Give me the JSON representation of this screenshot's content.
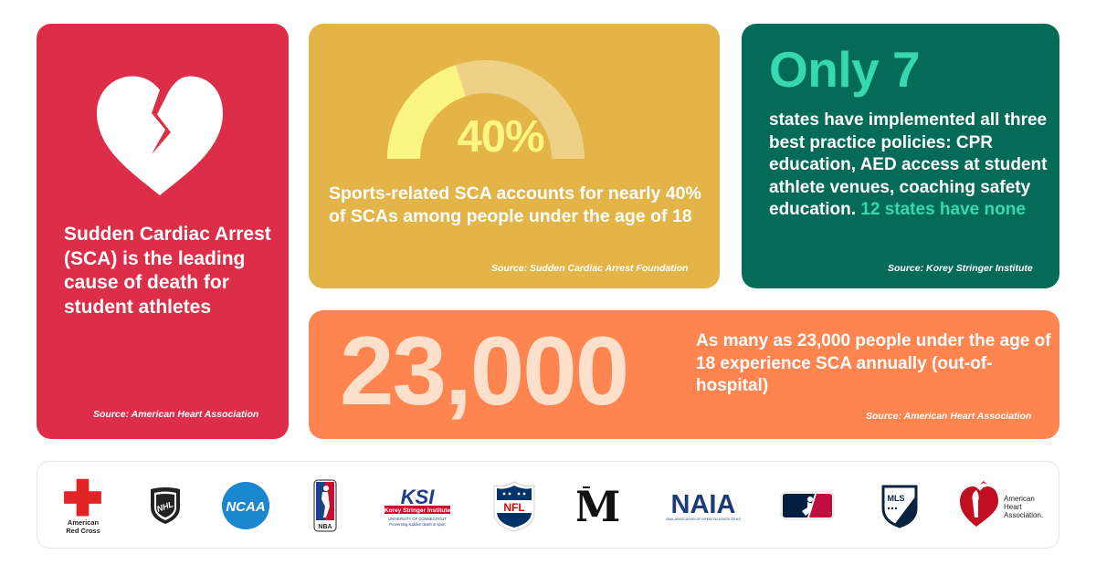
{
  "red_card": {
    "heading": "Sudden Cardiac Arrest (SCA) is the leading cause of death for student athletes",
    "source": "Source: American Heart Association",
    "icon": "broken-heart-icon"
  },
  "yellow_card": {
    "gauge_value": "40%",
    "gauge_fraction": 0.4,
    "text": "Sports-related SCA accounts for nearly 40% of SCAs among people under the age of 18",
    "source": "Source: Sudden Cardiac Arrest Foundation"
  },
  "green_card": {
    "headline": "Only 7",
    "text": "states have implemented all three best practice policies: CPR education, AED access at student athlete venues, coaching safety education.",
    "highlight": "12 states have none",
    "source": "Source: Korey Stringer Institute"
  },
  "orange_card": {
    "big_number": "23,000",
    "text": "As many as 23,000 people under the age of 18 experience SCA annually (out-of-hospital)",
    "source": "Source: American Heart Association"
  },
  "logos": {
    "red_cross": "American Red Cross",
    "nhl": "NHL",
    "ncaa": "NCAA",
    "nba": "NBA",
    "ksi_main": "KSI",
    "ksi_sub": "Korey Stringer Institute",
    "ksi_tag1": "UNIVERSITY OF CONNECTICUT",
    "ksi_tag2": "Preventing sudden death in sport",
    "nfl": "NFL",
    "naia": "NAIA",
    "naia_sub": "NATIONAL ASSOCIATION OF INTERCOLLEGIATE ATHLETICS",
    "mls": "MLS",
    "aha_line1": "American",
    "aha_line2": "Heart",
    "aha_line3": "Association."
  },
  "colors": {
    "red": "#dc2e48",
    "yellow": "#e3b548",
    "green": "#056b59",
    "orange": "#fe8550",
    "teal_accent": "#36d9ae",
    "gauge_fill": "#fbf684"
  }
}
